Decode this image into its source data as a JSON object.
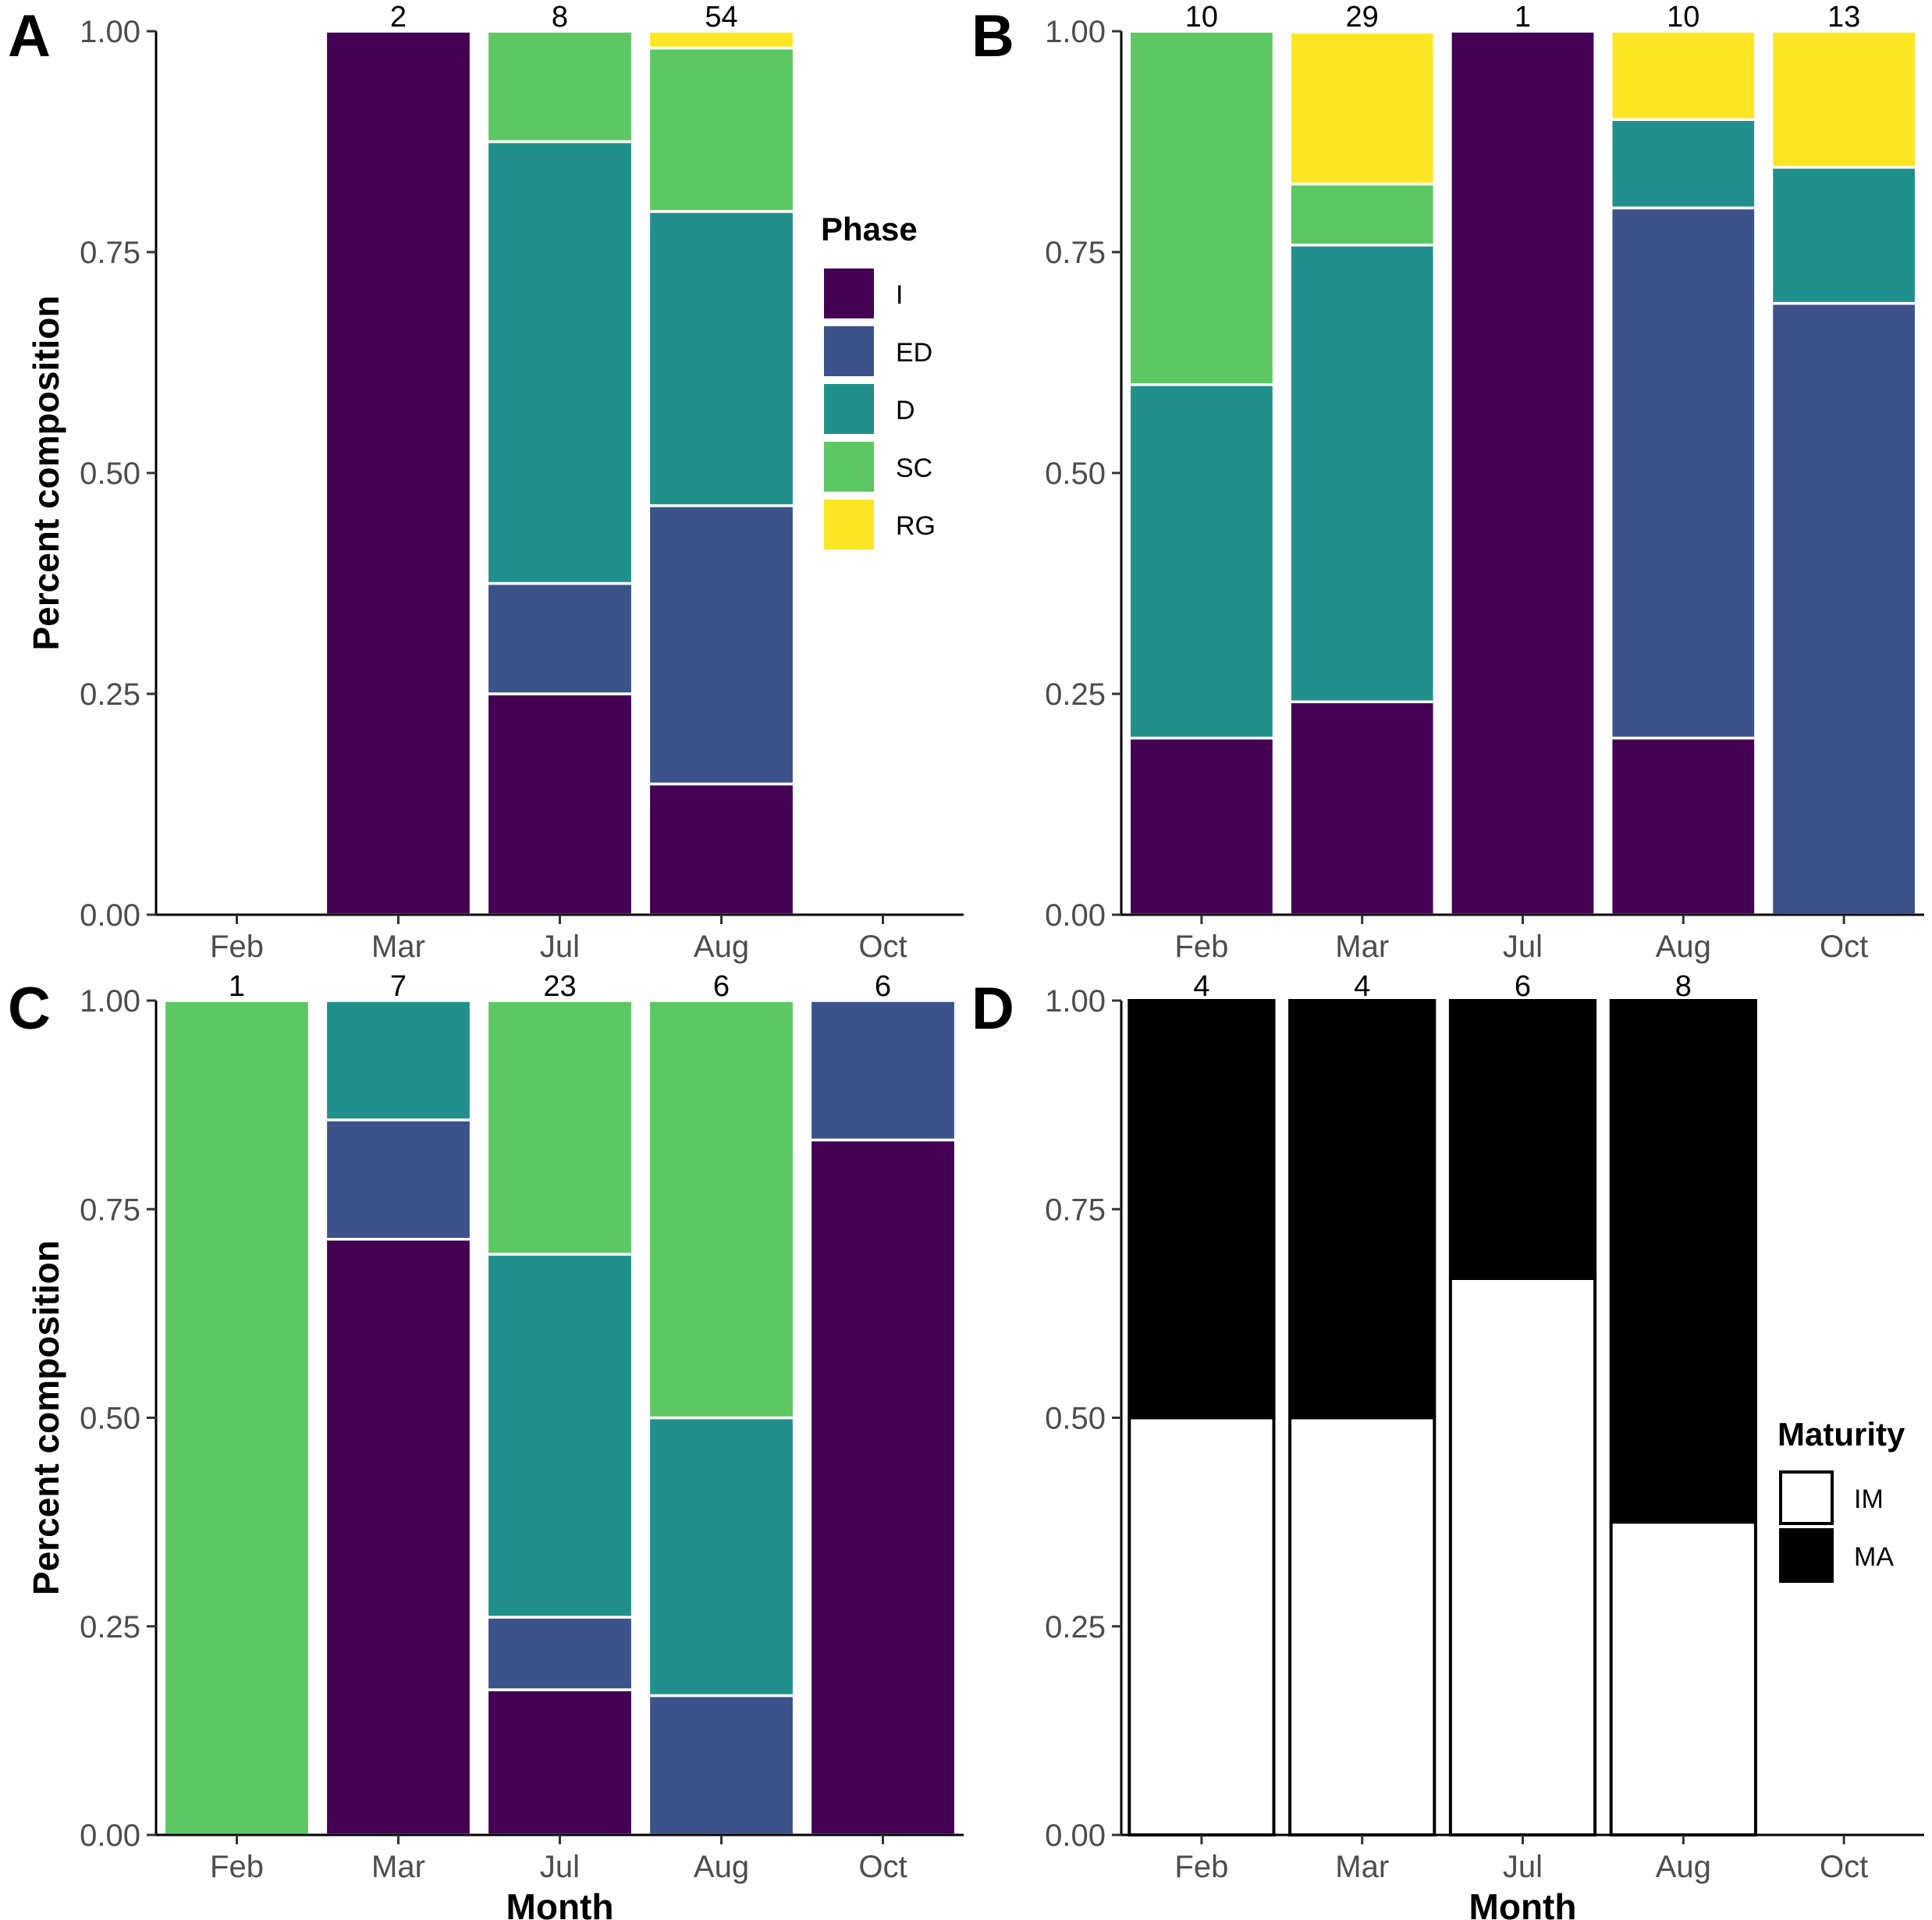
{
  "chart_data": [
    {
      "panel": "A",
      "type": "bar",
      "stacked": true,
      "normalized": true,
      "title": "",
      "xlabel": "",
      "ylabel": "Percent composition",
      "ylim": [
        0,
        1
      ],
      "yticks": [
        "0.00",
        "0.25",
        "0.50",
        "0.75",
        "1.00"
      ],
      "categories": [
        "Feb",
        "Mar",
        "Jul",
        "Aug",
        "Oct"
      ],
      "counts": [
        "",
        "2",
        "8",
        "54",
        ""
      ],
      "series": [
        {
          "name": "I",
          "color": "#440154",
          "values": [
            0,
            1.0,
            0.25,
            0.148,
            0
          ]
        },
        {
          "name": "ED",
          "color": "#3b528b",
          "values": [
            0,
            0,
            0.125,
            0.315,
            0
          ]
        },
        {
          "name": "D",
          "color": "#21908c",
          "values": [
            0,
            0,
            0.5,
            0.333,
            0
          ]
        },
        {
          "name": "SC",
          "color": "#5dc863",
          "values": [
            0,
            0,
            0.125,
            0.185,
            0
          ]
        },
        {
          "name": "RG",
          "color": "#fde725",
          "values": [
            0,
            0,
            0,
            0.019,
            0
          ]
        }
      ],
      "legend": {
        "title": "Phase",
        "position": "right",
        "entries": [
          "I",
          "ED",
          "D",
          "SC",
          "RG"
        ]
      }
    },
    {
      "panel": "B",
      "type": "bar",
      "stacked": true,
      "normalized": true,
      "title": "",
      "xlabel": "",
      "ylabel": "",
      "ylim": [
        0,
        1
      ],
      "yticks": [
        "0.00",
        "0.25",
        "0.50",
        "0.75",
        "1.00"
      ],
      "categories": [
        "Feb",
        "Mar",
        "Jul",
        "Aug",
        "Oct"
      ],
      "counts": [
        "10",
        "29",
        "1",
        "10",
        "13"
      ],
      "series": [
        {
          "name": "I",
          "color": "#440154",
          "values": [
            0.2,
            0.241,
            1.0,
            0.2,
            0
          ]
        },
        {
          "name": "ED",
          "color": "#3b528b",
          "values": [
            0,
            0,
            0,
            0.6,
            0.692
          ]
        },
        {
          "name": "D",
          "color": "#21908c",
          "values": [
            0.4,
            0.517,
            0,
            0.1,
            0.154
          ]
        },
        {
          "name": "SC",
          "color": "#5dc863",
          "values": [
            0.4,
            0.069,
            0,
            0,
            0
          ]
        },
        {
          "name": "RG",
          "color": "#fde725",
          "values": [
            0,
            0.172,
            0,
            0.1,
            0.154
          ]
        }
      ]
    },
    {
      "panel": "C",
      "type": "bar",
      "stacked": true,
      "normalized": true,
      "title": "",
      "xlabel": "Month",
      "ylabel": "Percent composition",
      "ylim": [
        0,
        1
      ],
      "yticks": [
        "0.00",
        "0.25",
        "0.50",
        "0.75",
        "1.00"
      ],
      "categories": [
        "Feb",
        "Mar",
        "Jul",
        "Aug",
        "Oct"
      ],
      "counts": [
        "1",
        "7",
        "23",
        "6",
        "6"
      ],
      "series": [
        {
          "name": "I",
          "color": "#440154",
          "values": [
            0,
            0.714,
            0.174,
            0,
            0.833
          ]
        },
        {
          "name": "ED",
          "color": "#3b528b",
          "values": [
            0,
            0.143,
            0.087,
            0.167,
            0.167
          ]
        },
        {
          "name": "D",
          "color": "#21908c",
          "values": [
            0,
            0.143,
            0.435,
            0.333,
            0
          ]
        },
        {
          "name": "SC",
          "color": "#5dc863",
          "values": [
            1.0,
            0,
            0.304,
            0.5,
            0
          ]
        },
        {
          "name": "RG",
          "color": "#fde725",
          "values": [
            0,
            0,
            0,
            0,
            0
          ]
        }
      ]
    },
    {
      "panel": "D",
      "type": "bar",
      "stacked": true,
      "normalized": true,
      "title": "",
      "xlabel": "Month",
      "ylabel": "",
      "ylim": [
        0,
        1
      ],
      "yticks": [
        "0.00",
        "0.25",
        "0.50",
        "0.75",
        "1.00"
      ],
      "categories": [
        "Feb",
        "Mar",
        "Jul",
        "Aug",
        "Oct"
      ],
      "counts": [
        "4",
        "4",
        "6",
        "8",
        ""
      ],
      "outlined": true,
      "series": [
        {
          "name": "IM",
          "color": "#ffffff",
          "values": [
            0.5,
            0.5,
            0.667,
            0.375,
            0
          ]
        },
        {
          "name": "MA",
          "color": "#000000",
          "values": [
            0.5,
            0.5,
            0.333,
            0.625,
            0
          ]
        }
      ],
      "legend": {
        "title": "Maturity",
        "position": "right",
        "entries": [
          "IM",
          "MA"
        ]
      }
    }
  ]
}
